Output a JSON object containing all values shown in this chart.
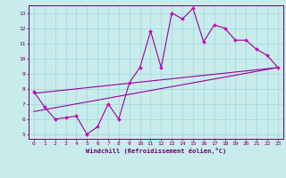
{
  "xlabel": "Windchill (Refroidissement éolien,°C)",
  "bg_color": "#c8ecec",
  "grid_color": "#a8d8d8",
  "line_color": "#990099",
  "marker_color": "#cc00cc",
  "xlim": [
    -0.5,
    23.5
  ],
  "ylim": [
    4.7,
    13.5
  ],
  "xticks": [
    0,
    1,
    2,
    3,
    4,
    5,
    6,
    7,
    8,
    9,
    10,
    11,
    12,
    13,
    14,
    15,
    16,
    17,
    18,
    19,
    20,
    21,
    22,
    23
  ],
  "yticks": [
    5,
    6,
    7,
    8,
    9,
    10,
    11,
    12,
    13
  ],
  "main_x": [
    0,
    1,
    2,
    3,
    4,
    5,
    6,
    7,
    8,
    9,
    10,
    11,
    12,
    13,
    14,
    15,
    16,
    17,
    18,
    19,
    20,
    21,
    22,
    23
  ],
  "main_y": [
    7.8,
    6.8,
    6.0,
    6.1,
    6.2,
    5.0,
    5.5,
    7.0,
    6.0,
    8.4,
    9.4,
    11.8,
    9.4,
    13.0,
    12.6,
    13.3,
    11.1,
    12.2,
    12.0,
    11.2,
    11.2,
    10.6,
    10.2,
    9.4
  ],
  "line1_x": [
    0,
    23
  ],
  "line1_y": [
    6.5,
    9.4
  ],
  "line2_x": [
    0,
    23
  ],
  "line2_y": [
    7.7,
    9.4
  ]
}
